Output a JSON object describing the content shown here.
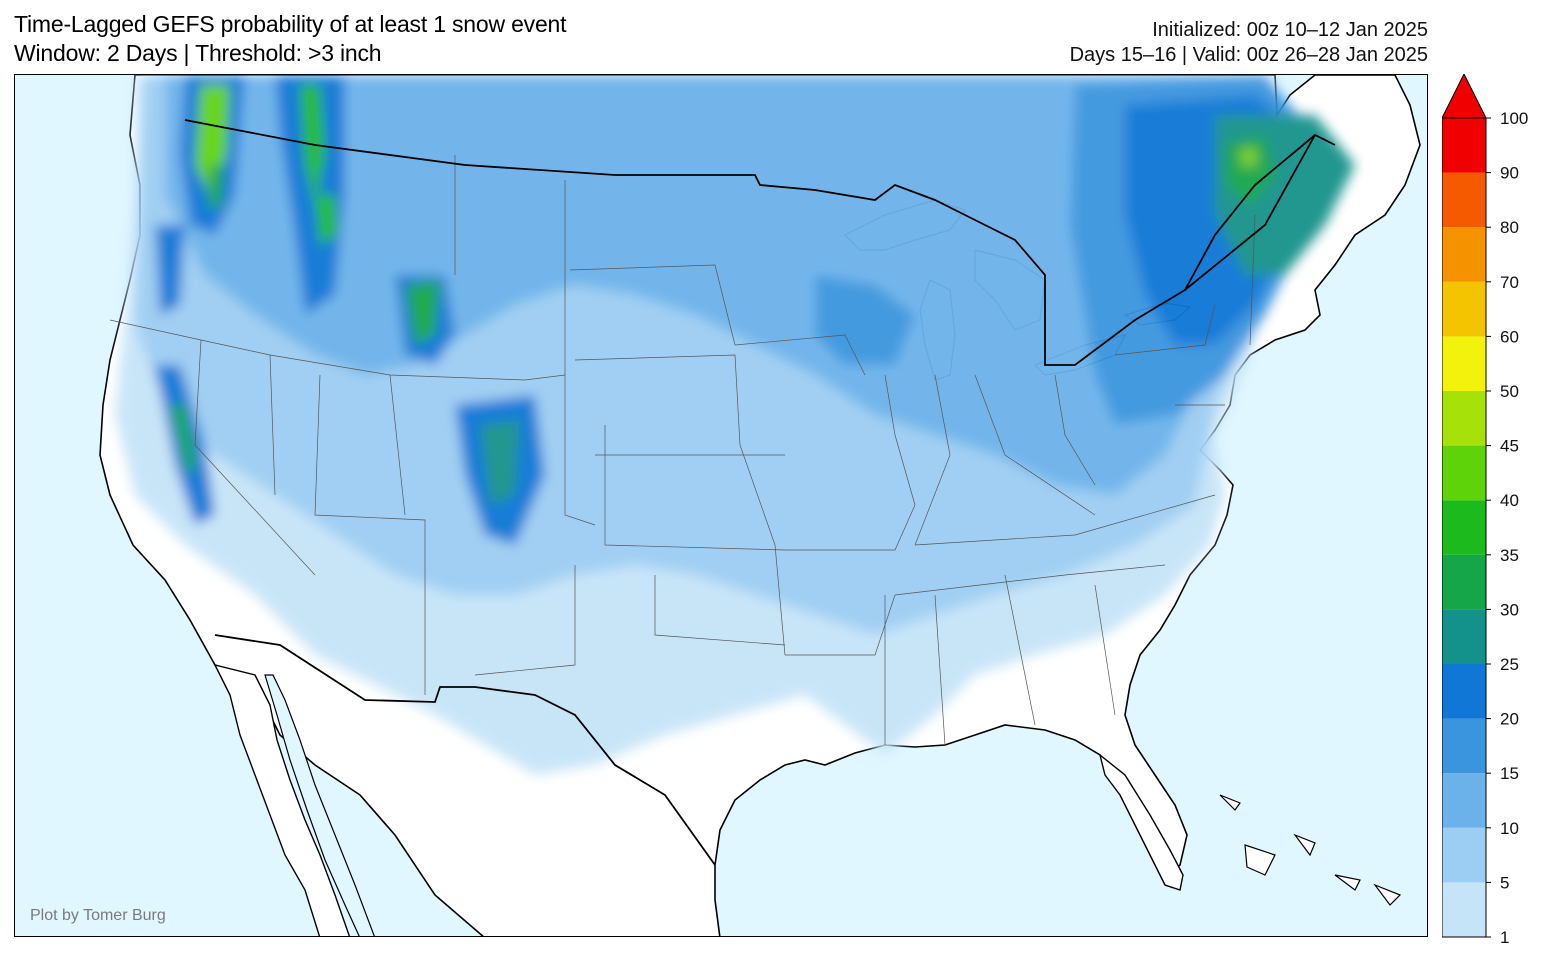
{
  "title": {
    "line1": "Time-Lagged GEFS probability of at least 1 snow event",
    "line2": "Window: 2 Days | Threshold: >3 inch"
  },
  "meta": {
    "initialized": "Initialized: 00z 10–12 Jan 2025",
    "valid": "Days 15–16 | Valid: 00z 26–28 Jan 2025"
  },
  "credit": "Plot by Tomer Burg",
  "map": {
    "region": "Contiguous United States",
    "ocean_color": "#e0f7ff",
    "land_color": "#ffffff"
  },
  "colorbar": {
    "levels": [
      "1",
      "5",
      "10",
      "15",
      "20",
      "25",
      "30",
      "35",
      "40",
      "45",
      "50",
      "60",
      "70",
      "80",
      "90",
      "100"
    ],
    "colors": [
      "#c6e4f8",
      "#9ccdf3",
      "#6cb2ea",
      "#3b95de",
      "#1177d6",
      "#12928a",
      "#16a64a",
      "#1cba1c",
      "#5fd30a",
      "#a6e20a",
      "#f2f20a",
      "#f5c400",
      "#f59200",
      "#f55a00",
      "#f00000"
    ],
    "extend": "max"
  }
}
